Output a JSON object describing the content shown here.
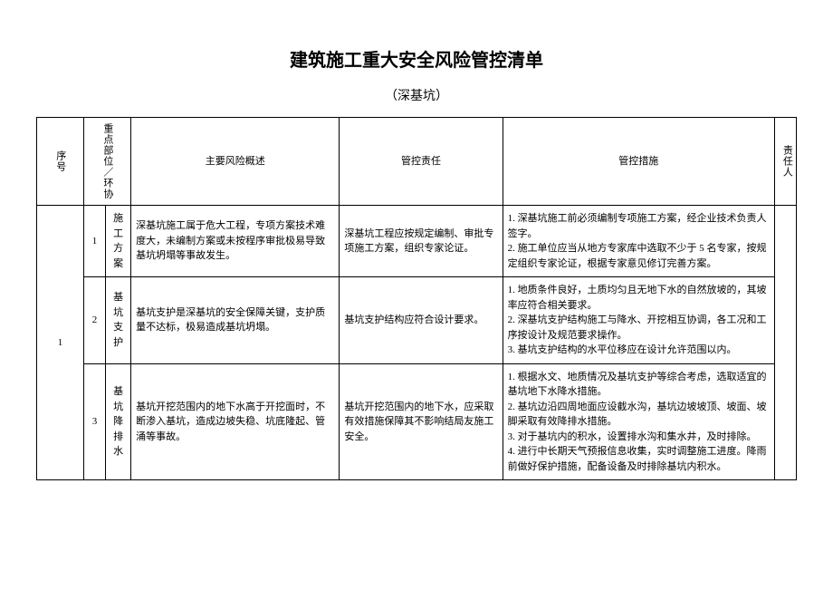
{
  "title": "建筑施工重大安全风险管控清单",
  "subtitle": "（深基坑）",
  "headers": {
    "seq": "序号",
    "position": "重点部位／环协",
    "risk": "主要风险概述",
    "responsibility": "管控责任",
    "measures": "管控措施",
    "person": "责任人"
  },
  "groups": [
    {
      "groupSeq": "1",
      "rows": [
        {
          "subSeq": "1",
          "name": "施工方案",
          "risk": "深基坑施工属于危大工程，专项方案技术难度大，未编制方案或未按程序审批极易导致基坑坍塌等事故发生。",
          "responsibility": "深基坑工程应按规定编制、审批专项施工方案，组织专家论证。",
          "measures": "1. 深基坑施工前必须编制专项施工方案，经企业技术负责人签字。\n2. 施工单位应当从地方专家库中选取不少于 5 名专家，按规定组织专家论证，根据专家意见修订完善方案。"
        },
        {
          "subSeq": "2",
          "name": "基　坑支护",
          "risk": "基坑支护是深基坑的安全保障关键，支护质量不达标，极易造成基坑坍塌。",
          "responsibility": "基坑支护结构应符合设计要求。",
          "measures": "1. 地质条件良好，土质均匀且无地下水的自然放坡的，其坡率应符合相关要求。\n2. 深基坑支护结构施工与降水、开挖相互协调，各工况和工序按设计及规范要求操作。\n3. 基坑支护结构的水平位移应在设计允许范围以内。"
        },
        {
          "subSeq": "3",
          "name": "基坑降排水",
          "risk": "基坑开挖范围内的地下水高于开挖面时，不断渗入基坑，造成边坡失稳、坑底隆起、管涌等事故。",
          "responsibility": "基坑开挖范围内的地下水，应采取有效措施保障其不影响结局友施工安全。",
          "measures": "1. 根据水文、地质情况及基坑支护等综合考虑，选取适宜的基坑地下水降水措施。\n2. 基坑边沿四周地面应设截水沟，基坑边坡坡顶、坡面、坡脚采取有效降排水措施。\n3. 对于基坑内的积水，设置排水沟和集水井，及时排除。\n4. 进行中长期天气预报信息收集，实时调整施工进度。降雨前做好保护措施，配备设备及时排除基坑内积水。"
        }
      ]
    }
  ]
}
